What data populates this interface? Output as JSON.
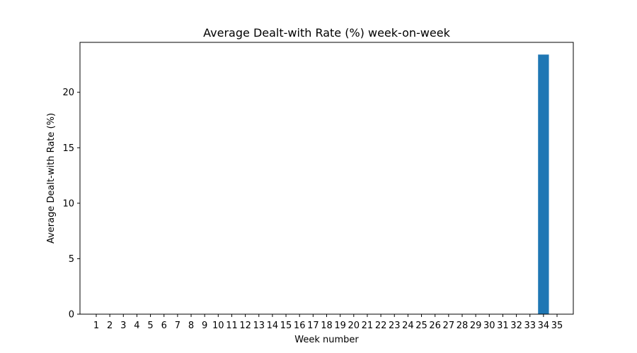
{
  "chart_data": {
    "type": "bar",
    "title": "Average Dealt-with Rate (%) week-on-week",
    "xlabel": "Week number",
    "ylabel": "Average Dealt-with Rate (%)",
    "categories": [
      "1",
      "2",
      "3",
      "4",
      "5",
      "6",
      "7",
      "8",
      "9",
      "10",
      "11",
      "12",
      "13",
      "14",
      "15",
      "16",
      "17",
      "18",
      "19",
      "20",
      "21",
      "22",
      "23",
      "24",
      "25",
      "26",
      "27",
      "28",
      "29",
      "30",
      "31",
      "32",
      "33",
      "34",
      "35"
    ],
    "values": [
      0,
      0,
      0,
      0,
      0,
      0,
      0,
      0,
      0,
      0,
      0,
      0,
      0,
      0,
      0,
      0,
      0,
      0,
      0,
      0,
      0,
      0,
      0,
      0,
      0,
      0,
      0,
      0,
      0,
      0,
      0,
      0,
      0,
      23.4,
      0
    ],
    "ylim": [
      0,
      24.5
    ],
    "yticks": [
      0,
      5,
      10,
      15,
      20
    ],
    "bar_color": "#1f77b4",
    "grid": false
  }
}
